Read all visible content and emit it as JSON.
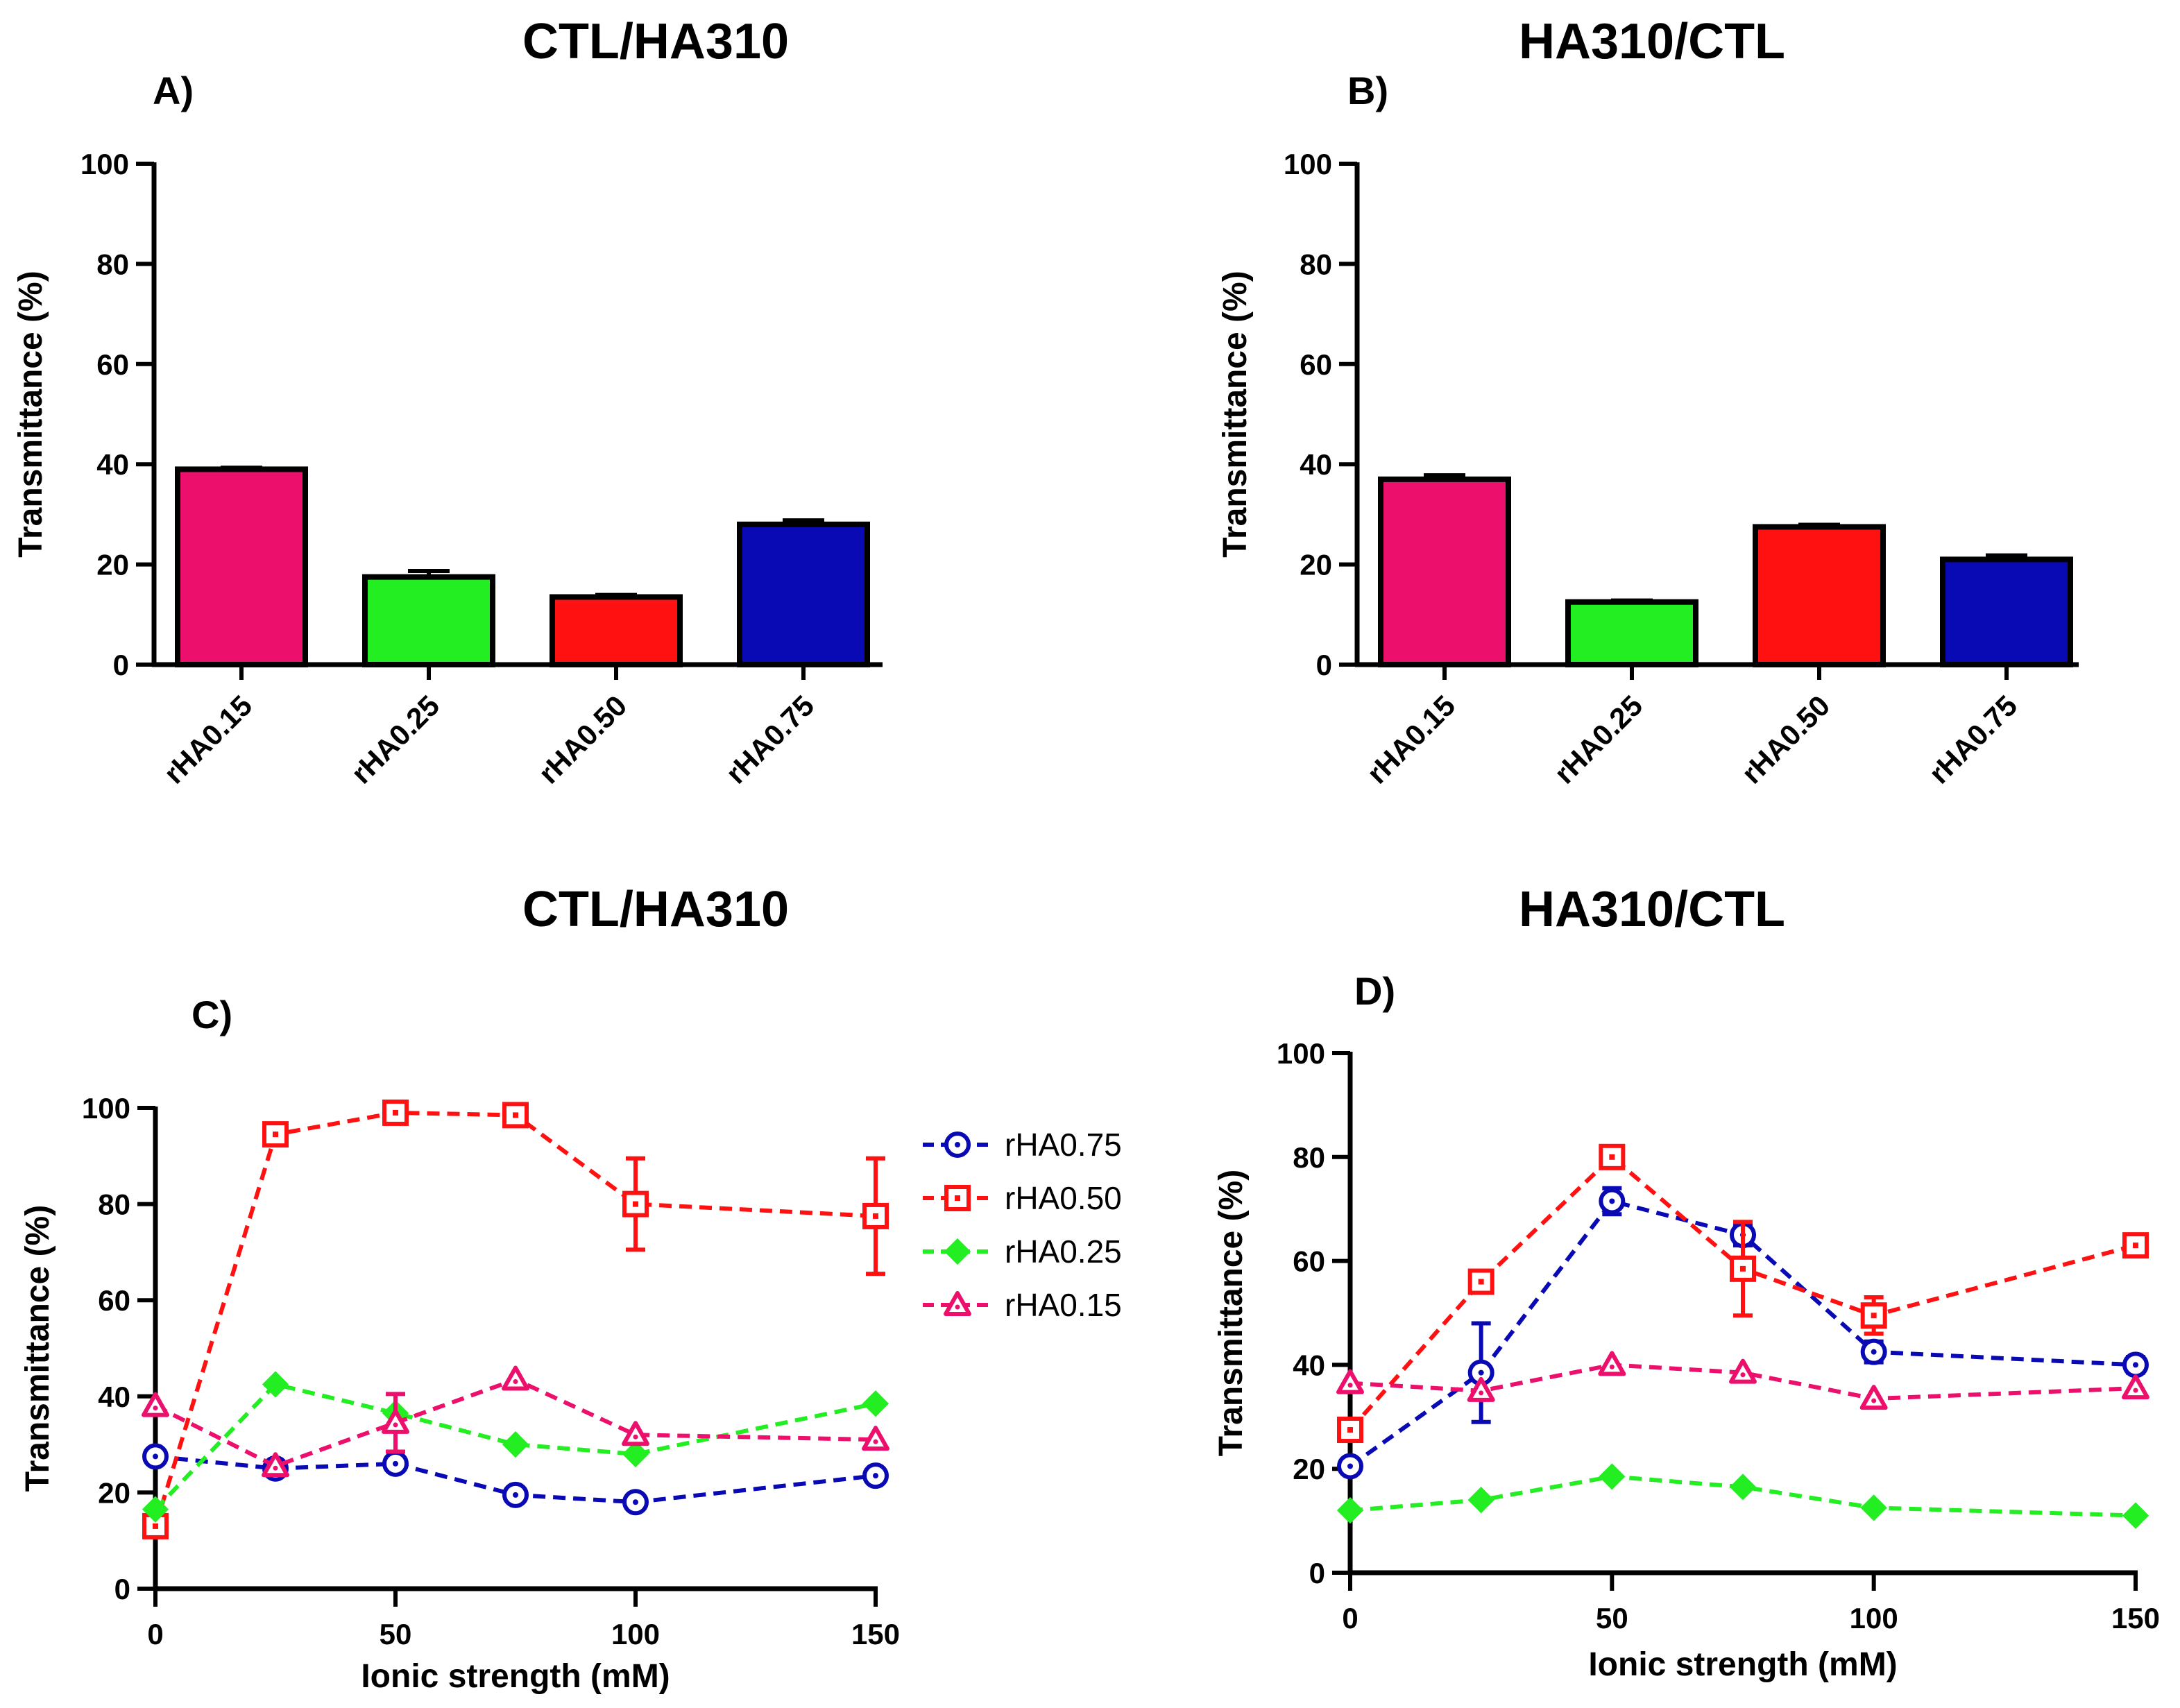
{
  "colors": {
    "rHA0.15": "#ec0f6b",
    "rHA0.25": "#22ee22",
    "rHA0.50": "#ff1111",
    "rHA0.75": "#0a0ab4"
  },
  "chart_data": [
    {
      "panel": "A)",
      "type": "bar",
      "title": "CTL/HA310",
      "ylabel": "Transmittance (%)",
      "xlabel": "",
      "ylim": [
        0,
        100
      ],
      "yticks": [
        0,
        20,
        40,
        60,
        80,
        100
      ],
      "categories": [
        "rHA0.15",
        "rHA0.25",
        "rHA0.50",
        "rHA0.75"
      ],
      "values": [
        39,
        17.5,
        13.5,
        28
      ],
      "errors": [
        0.3,
        1.2,
        0.4,
        0.8
      ]
    },
    {
      "panel": "B)",
      "type": "bar",
      "title": "HA310/CTL",
      "ylabel": "Transmittance (%)",
      "xlabel": "",
      "ylim": [
        0,
        100
      ],
      "yticks": [
        0,
        20,
        40,
        60,
        80,
        100
      ],
      "categories": [
        "rHA0.15",
        "rHA0.25",
        "rHA0.50",
        "rHA0.75"
      ],
      "values": [
        37,
        12.5,
        27.5,
        21
      ],
      "errors": [
        0.8,
        0.3,
        0.4,
        0.8
      ]
    },
    {
      "panel": "C)",
      "type": "line",
      "title": "CTL/HA310",
      "ylabel": "Transmittance (%)",
      "xlabel": "Ionic strength (mM)",
      "ylim": [
        0,
        100
      ],
      "xlim": [
        0,
        150
      ],
      "yticks": [
        0,
        20,
        40,
        60,
        80,
        100
      ],
      "xticks": [
        0,
        50,
        100,
        150
      ],
      "x": [
        0,
        25,
        50,
        75,
        100,
        150
      ],
      "legend": "right",
      "series": [
        {
          "name": "rHA0.75",
          "marker": "circle",
          "values": [
            27.5,
            25,
            26,
            19.5,
            18,
            23.5
          ],
          "errors": [
            0,
            0,
            0,
            0,
            0,
            0
          ]
        },
        {
          "name": "rHA0.50",
          "marker": "square",
          "values": [
            13,
            94.5,
            99,
            98.5,
            80,
            77.5
          ],
          "errors": [
            0,
            0,
            0,
            0,
            9.5,
            12
          ]
        },
        {
          "name": "rHA0.25",
          "marker": "diamond",
          "values": [
            16.5,
            42.5,
            36.5,
            30,
            28,
            38.5
          ],
          "errors": [
            0,
            0,
            0,
            0,
            0,
            0
          ]
        },
        {
          "name": "rHA0.15",
          "marker": "triangle",
          "values": [
            38,
            25.5,
            34.5,
            43.5,
            32,
            31
          ],
          "errors": [
            0,
            0,
            6,
            0,
            0,
            0
          ]
        }
      ]
    },
    {
      "panel": "D)",
      "type": "line",
      "title": "HA310/CTL",
      "ylabel": "Transmittance (%)",
      "xlabel": "Ionic strength (mM)",
      "ylim": [
        0,
        100
      ],
      "xlim": [
        0,
        150
      ],
      "yticks": [
        0,
        20,
        40,
        60,
        80,
        100
      ],
      "xticks": [
        0,
        50,
        100,
        150
      ],
      "x": [
        0,
        25,
        50,
        75,
        100,
        150
      ],
      "series": [
        {
          "name": "rHA0.75",
          "marker": "circle",
          "values": [
            20.5,
            38.5,
            71.5,
            65,
            42.5,
            40
          ],
          "errors": [
            0,
            9.5,
            2.5,
            2,
            2,
            1.5
          ]
        },
        {
          "name": "rHA0.50",
          "marker": "square",
          "values": [
            27.5,
            56,
            80,
            58.5,
            49.5,
            63
          ],
          "errors": [
            0,
            2,
            1,
            9,
            3.5,
            1.5
          ]
        },
        {
          "name": "rHA0.25",
          "marker": "diamond",
          "values": [
            12,
            14,
            18.5,
            16.5,
            12.5,
            11
          ],
          "errors": [
            0,
            0,
            0,
            0,
            0,
            0
          ]
        },
        {
          "name": "rHA0.15",
          "marker": "triangle",
          "values": [
            36.5,
            35,
            40,
            38.5,
            33.5,
            35.5
          ],
          "errors": [
            0,
            0,
            0,
            0,
            0,
            0
          ]
        }
      ]
    }
  ]
}
